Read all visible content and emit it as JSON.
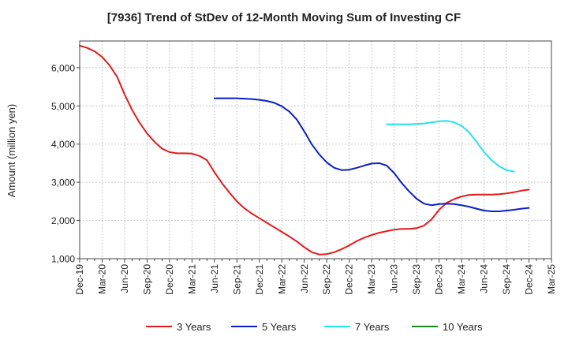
{
  "chart_data": {
    "type": "line",
    "title": "[7936]  Trend of StDev of 12-Month Moving Sum of Investing CF",
    "ylabel": "Amount (million yen)",
    "xlabel": "",
    "ylim": [
      1000,
      6700
    ],
    "yticks": [
      1000,
      2000,
      3000,
      4000,
      5000,
      6000
    ],
    "ytick_labels": [
      "1,000",
      "2,000",
      "3,000",
      "4,000",
      "5,000",
      "6,000"
    ],
    "xticks": [
      "Dec-19",
      "Mar-20",
      "Jun-20",
      "Sep-20",
      "Dec-20",
      "Mar-21",
      "Jun-21",
      "Sep-21",
      "Dec-21",
      "Mar-22",
      "Jun-22",
      "Sep-22",
      "Dec-22",
      "Mar-23",
      "Jun-23",
      "Sep-23",
      "Dec-23",
      "Mar-24",
      "Jun-24",
      "Sep-24",
      "Dec-24",
      "Mar-25"
    ],
    "grid": true,
    "legend_position": "bottom",
    "series": [
      {
        "name": "3 Years",
        "color": "#e31a1c",
        "start_index": 0,
        "values": [
          6580,
          6520,
          6430,
          6280,
          6060,
          5760,
          5300,
          4900,
          4560,
          4280,
          4060,
          3880,
          3790,
          3760,
          3760,
          3750,
          3690,
          3580,
          3260,
          2980,
          2730,
          2500,
          2320,
          2180,
          2060,
          1940,
          1820,
          1700,
          1580,
          1450,
          1300,
          1170,
          1110,
          1120,
          1170,
          1250,
          1350,
          1460,
          1550,
          1620,
          1680,
          1720,
          1760,
          1780,
          1780,
          1800,
          1870,
          2030,
          2280,
          2460,
          2560,
          2630,
          2670,
          2680,
          2680,
          2680,
          2690,
          2710,
          2740,
          2780,
          2810
        ]
      },
      {
        "name": "5 Years",
        "color": "#0a1fc8",
        "start_index": 18,
        "values": [
          5200,
          5200,
          5200,
          5200,
          5190,
          5180,
          5160,
          5130,
          5080,
          4990,
          4850,
          4640,
          4330,
          3990,
          3730,
          3520,
          3380,
          3320,
          3330,
          3380,
          3440,
          3490,
          3500,
          3440,
          3240,
          2980,
          2760,
          2570,
          2440,
          2400,
          2430,
          2440,
          2430,
          2400,
          2360,
          2310,
          2260,
          2240,
          2240,
          2260,
          2280,
          2310,
          2330
        ]
      },
      {
        "name": "7 Years",
        "color": "#20e3f0",
        "start_index": 41,
        "values": [
          4520,
          4520,
          4520,
          4520,
          4530,
          4540,
          4570,
          4600,
          4610,
          4570,
          4480,
          4310,
          4060,
          3790,
          3580,
          3420,
          3320,
          3280
        ]
      },
      {
        "name": "10 Years",
        "color": "#1a8a1a",
        "start_index": 0,
        "values": []
      }
    ]
  }
}
